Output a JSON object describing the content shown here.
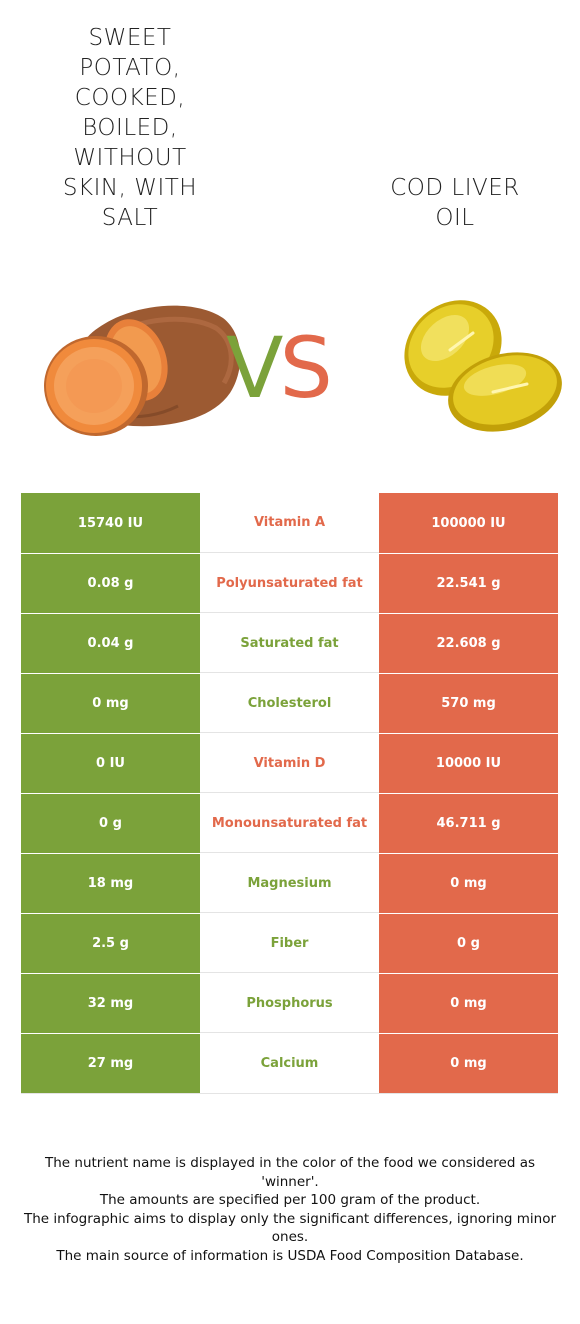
{
  "left_food": {
    "name": "Sweet potato, cooked, boiled, without skin, with salt",
    "color": "#7ba23a"
  },
  "right_food": {
    "name": "Cod liver oil",
    "color": "#e2694b"
  },
  "vs": {
    "v": "V",
    "s": "S"
  },
  "rows": [
    {
      "left": "15740 IU",
      "nutrient": "Vitamin A",
      "right": "100000 IU",
      "winner": "right"
    },
    {
      "left": "0.08 g",
      "nutrient": "Polyunsaturated fat",
      "right": "22.541 g",
      "winner": "right"
    },
    {
      "left": "0.04 g",
      "nutrient": "Saturated fat",
      "right": "22.608 g",
      "winner": "left"
    },
    {
      "left": "0 mg",
      "nutrient": "Cholesterol",
      "right": "570 mg",
      "winner": "left"
    },
    {
      "left": "0 IU",
      "nutrient": "Vitamin D",
      "right": "10000 IU",
      "winner": "right"
    },
    {
      "left": "0 g",
      "nutrient": "Monounsaturated fat",
      "right": "46.711 g",
      "winner": "right"
    },
    {
      "left": "18 mg",
      "nutrient": "Magnesium",
      "right": "0 mg",
      "winner": "left"
    },
    {
      "left": "2.5 g",
      "nutrient": "Fiber",
      "right": "0 g",
      "winner": "left"
    },
    {
      "left": "32 mg",
      "nutrient": "Phosphorus",
      "right": "0 mg",
      "winner": "left"
    },
    {
      "left": "27 mg",
      "nutrient": "Calcium",
      "right": "0 mg",
      "winner": "left"
    }
  ],
  "footer": {
    "line1": "The nutrient name is displayed in the color of the food we considered as 'winner'.",
    "line2": "The amounts are specified per 100 gram of the product.",
    "line3": "The infographic aims to display only the significant differences, ignoring minor ones.",
    "line4": "The main source of information is USDA Food Composition Database."
  }
}
